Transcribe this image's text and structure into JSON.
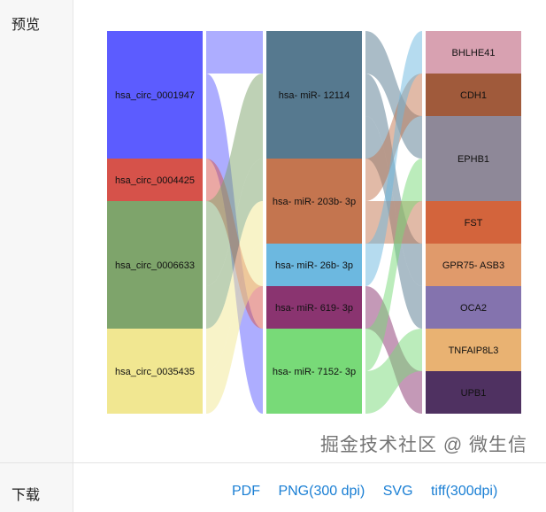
{
  "sidebar": {
    "preview_label": "预览",
    "download_label": "下载"
  },
  "downloads": [
    "PDF",
    "PNG(300 dpi)",
    "SVG",
    "tiff(300dpi)"
  ],
  "watermark": "掘金技术社区 @ 微生信",
  "chart_data": {
    "type": "sankey",
    "columns": [
      [
        {
          "name": "hsa_circ_0001947",
          "value": 3,
          "color": "#5c5cff"
        },
        {
          "name": "hsa_circ_0004425",
          "value": 1,
          "color": "#d6524a"
        },
        {
          "name": "hsa_circ_0006633",
          "value": 3,
          "color": "#7ea46b"
        },
        {
          "name": "hsa_circ_0035435",
          "value": 2,
          "color": "#f1e791"
        }
      ],
      [
        {
          "name": "hsa- miR- 12114",
          "value": 3,
          "color": "#56798f"
        },
        {
          "name": "hsa- miR- 203b- 3p",
          "value": 2,
          "color": "#c4754f"
        },
        {
          "name": "hsa- miR- 26b- 3p",
          "value": 1,
          "color": "#6cb8e0"
        },
        {
          "name": "hsa- miR- 619- 3p",
          "value": 1,
          "color": "#8a3470"
        },
        {
          "name": "hsa- miR- 7152- 3p",
          "value": 2,
          "color": "#78da78"
        }
      ],
      [
        {
          "name": "BHLHE41",
          "value": 1,
          "color": "#d8a1b1"
        },
        {
          "name": "CDH1",
          "value": 1,
          "color": "#a05a3b"
        },
        {
          "name": "EPHB1",
          "value": 2,
          "color": "#8e8898"
        },
        {
          "name": "FST",
          "value": 1,
          "color": "#d3643c"
        },
        {
          "name": "GPR75- ASB3",
          "value": 1,
          "color": "#e09a6b"
        },
        {
          "name": "OCA2",
          "value": 1,
          "color": "#8473ae"
        },
        {
          "name": "TNFAIP8L3",
          "value": 1,
          "color": "#e9b272"
        },
        {
          "name": "UPB1",
          "value": 1,
          "color": "#4f3161"
        }
      ]
    ],
    "links": [
      {
        "from": [
          0,
          0
        ],
        "to": [
          1,
          0
        ],
        "value": 1
      },
      {
        "from": [
          0,
          0
        ],
        "to": [
          1,
          4
        ],
        "value": 2
      },
      {
        "from": [
          0,
          1
        ],
        "to": [
          1,
          3
        ],
        "value": 1
      },
      {
        "from": [
          0,
          2
        ],
        "to": [
          1,
          0
        ],
        "value": 2
      },
      {
        "from": [
          0,
          2
        ],
        "to": [
          1,
          1
        ],
        "value": 1
      },
      {
        "from": [
          0,
          3
        ],
        "to": [
          1,
          1
        ],
        "value": 1
      },
      {
        "from": [
          0,
          3
        ],
        "to": [
          1,
          2
        ],
        "value": 1
      },
      {
        "from": [
          1,
          0
        ],
        "to": [
          2,
          2
        ],
        "value": 1
      },
      {
        "from": [
          1,
          0
        ],
        "to": [
          2,
          4
        ],
        "value": 1
      },
      {
        "from": [
          1,
          0
        ],
        "to": [
          2,
          5
        ],
        "value": 1
      },
      {
        "from": [
          1,
          1
        ],
        "to": [
          2,
          1
        ],
        "value": 1
      },
      {
        "from": [
          1,
          1
        ],
        "to": [
          2,
          3
        ],
        "value": 1
      },
      {
        "from": [
          1,
          2
        ],
        "to": [
          2,
          0
        ],
        "value": 1
      },
      {
        "from": [
          1,
          3
        ],
        "to": [
          2,
          7
        ],
        "value": 1
      },
      {
        "from": [
          1,
          4
        ],
        "to": [
          2,
          2
        ],
        "value": 1
      },
      {
        "from": [
          1,
          4
        ],
        "to": [
          2,
          6
        ],
        "value": 1
      }
    ]
  }
}
